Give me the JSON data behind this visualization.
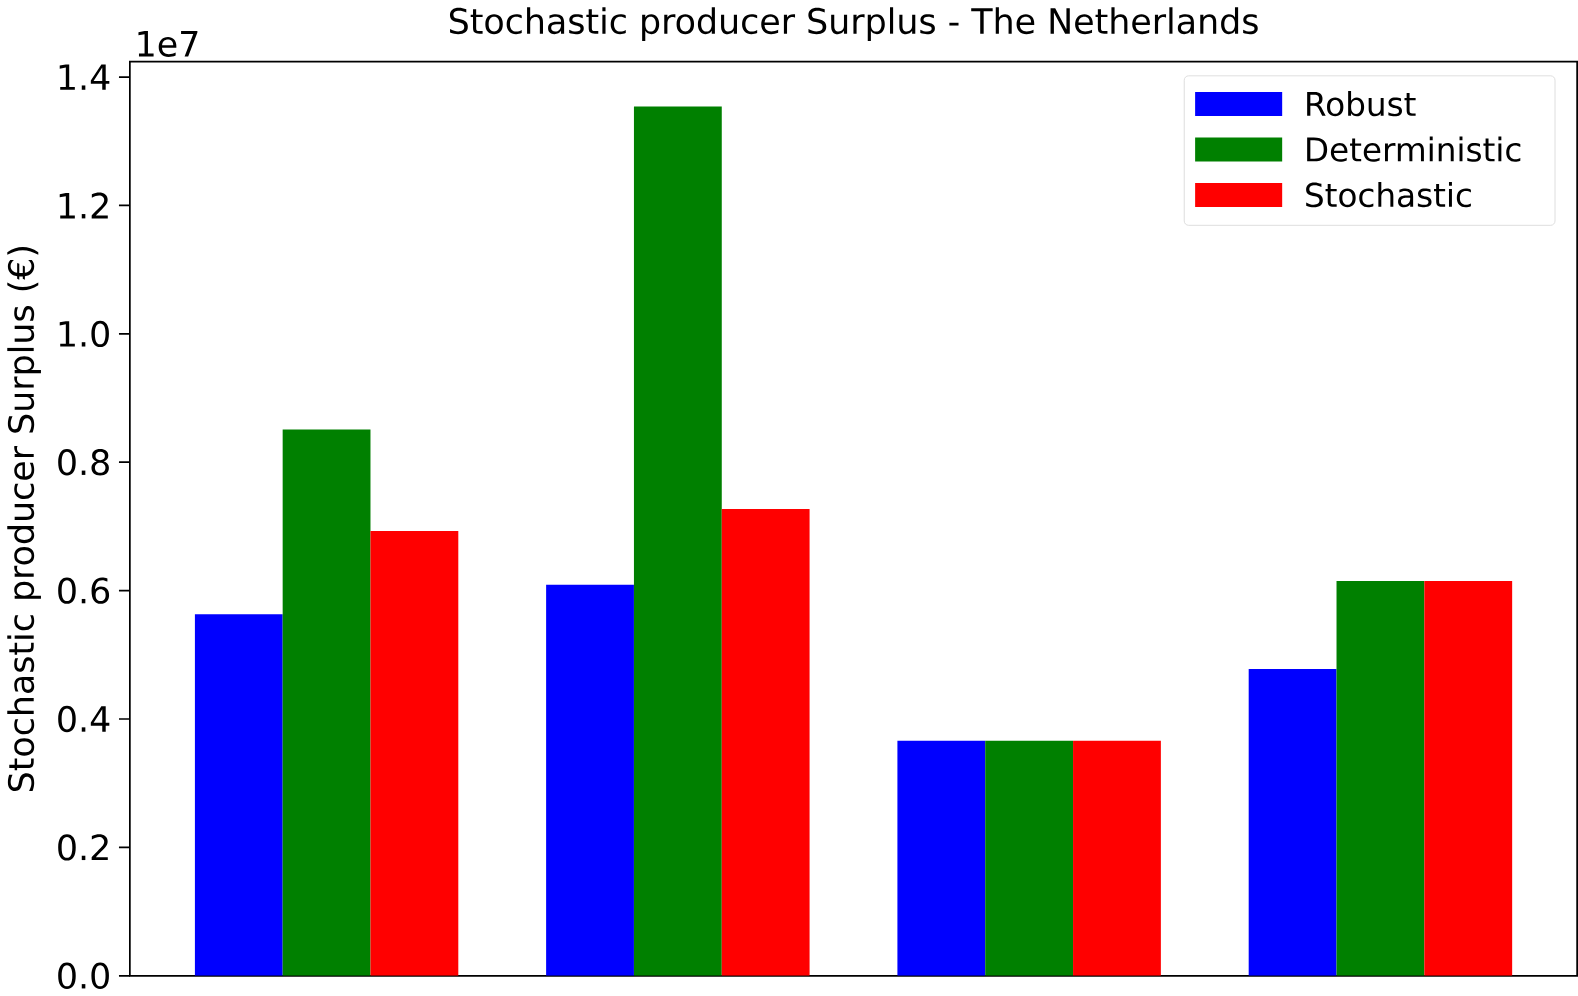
{
  "chart_data": {
    "type": "bar",
    "title": "Stochastic producer Surplus - The Netherlands",
    "ylabel": "Stochastic producer Surplus (€)",
    "annotations": [
      "1e7"
    ],
    "categories": [
      null,
      null,
      null,
      null
    ],
    "series": [
      {
        "name": "Robust",
        "color": "#0000ff",
        "values": [
          0.563,
          0.609,
          0.366,
          0.478
        ]
      },
      {
        "name": "Deterministic",
        "color": "#008000",
        "values": [
          0.851,
          1.354,
          0.366,
          0.615
        ]
      },
      {
        "name": "Stochastic",
        "color": "#ff0000",
        "values": [
          0.693,
          0.727,
          0.366,
          0.615
        ]
      }
    ],
    "ylim": [
      0,
      1.424
    ],
    "yticks": [
      {
        "value": 0,
        "label": "0.0"
      },
      0.2,
      0.4,
      0.6,
      0.8,
      {
        "value": 1.0,
        "label": "1.0"
      },
      1.2,
      1.4
    ],
    "legend": "top right",
    "grid": false
  }
}
